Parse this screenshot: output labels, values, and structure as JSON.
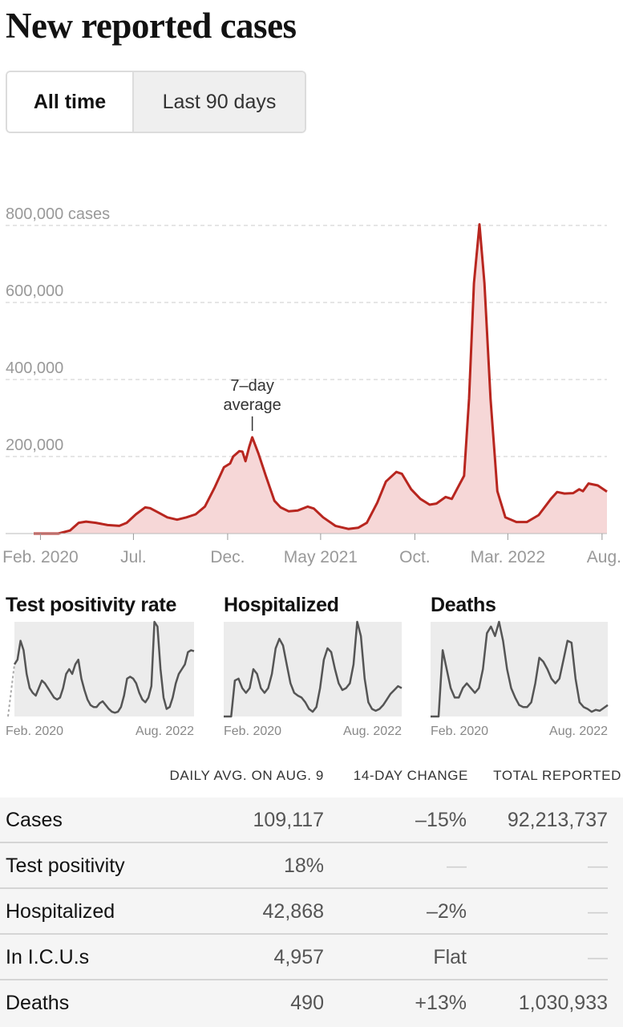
{
  "title": "New reported cases",
  "toggle": {
    "options": [
      "All time",
      "Last 90 days"
    ],
    "selected": "All time"
  },
  "chart_data": {
    "type": "area",
    "title": "New reported cases",
    "y_unit_label": "800,000 cases",
    "ylim": [
      0,
      800000
    ],
    "y_ticks": [
      {
        "value": 200000,
        "label": "200,000"
      },
      {
        "value": 400000,
        "label": "400,000"
      },
      {
        "value": 600000,
        "label": "600,000"
      },
      {
        "value": 800000,
        "label": "800,000 cases"
      }
    ],
    "x_ticks": [
      {
        "date": "2020-02-01",
        "label": "Feb. 2020"
      },
      {
        "date": "2020-07-01",
        "label": "Jul."
      },
      {
        "date": "2020-12-01",
        "label": "Dec."
      },
      {
        "date": "2021-05-01",
        "label": "May 2021"
      },
      {
        "date": "2021-10-01",
        "label": "Oct."
      },
      {
        "date": "2022-03-01",
        "label": "Mar. 2022"
      },
      {
        "date": "2022-08-01",
        "label": "Aug."
      }
    ],
    "xlim": [
      "2020-01-21",
      "2022-08-09"
    ],
    "grid": true,
    "annotation": {
      "text": [
        "7–day",
        "average"
      ],
      "date": "2021-01-10",
      "value": 250000
    },
    "colors": {
      "line": "#b8261f",
      "fill": "#f6d7d7",
      "grid": "#cccccc",
      "axis": "#999999"
    },
    "series": [
      {
        "name": "7–day average",
        "points": [
          [
            "2020-01-21",
            0
          ],
          [
            "2020-03-01",
            0
          ],
          [
            "2020-03-20",
            8000
          ],
          [
            "2020-04-03",
            28000
          ],
          [
            "2020-04-15",
            31000
          ],
          [
            "2020-05-01",
            28000
          ],
          [
            "2020-05-20",
            22000
          ],
          [
            "2020-06-08",
            20000
          ],
          [
            "2020-06-20",
            28000
          ],
          [
            "2020-07-05",
            50000
          ],
          [
            "2020-07-20",
            68000
          ],
          [
            "2020-07-28",
            66000
          ],
          [
            "2020-08-10",
            55000
          ],
          [
            "2020-08-25",
            42000
          ],
          [
            "2020-09-10",
            36000
          ],
          [
            "2020-09-25",
            42000
          ],
          [
            "2020-10-10",
            50000
          ],
          [
            "2020-10-25",
            70000
          ],
          [
            "2020-11-10",
            120000
          ],
          [
            "2020-11-25",
            172000
          ],
          [
            "2020-12-05",
            182000
          ],
          [
            "2020-12-10",
            200000
          ],
          [
            "2020-12-20",
            214000
          ],
          [
            "2020-12-25",
            213000
          ],
          [
            "2020-12-30",
            188000
          ],
          [
            "2021-01-05",
            225000
          ],
          [
            "2021-01-10",
            250000
          ],
          [
            "2021-01-20",
            208000
          ],
          [
            "2021-02-01",
            150000
          ],
          [
            "2021-02-15",
            85000
          ],
          [
            "2021-02-25",
            68000
          ],
          [
            "2021-03-10",
            58000
          ],
          [
            "2021-03-25",
            60000
          ],
          [
            "2021-04-10",
            70000
          ],
          [
            "2021-04-20",
            65000
          ],
          [
            "2021-05-05",
            42000
          ],
          [
            "2021-05-25",
            20000
          ],
          [
            "2021-06-15",
            12000
          ],
          [
            "2021-07-01",
            15000
          ],
          [
            "2021-07-15",
            28000
          ],
          [
            "2021-08-01",
            80000
          ],
          [
            "2021-08-15",
            135000
          ],
          [
            "2021-09-01",
            160000
          ],
          [
            "2021-09-10",
            155000
          ],
          [
            "2021-09-25",
            115000
          ],
          [
            "2021-10-10",
            90000
          ],
          [
            "2021-10-25",
            75000
          ],
          [
            "2021-11-05",
            78000
          ],
          [
            "2021-11-20",
            95000
          ],
          [
            "2021-11-30",
            90000
          ],
          [
            "2021-12-10",
            120000
          ],
          [
            "2021-12-20",
            150000
          ],
          [
            "2021-12-28",
            350000
          ],
          [
            "2022-01-05",
            650000
          ],
          [
            "2022-01-14",
            803000
          ],
          [
            "2022-01-22",
            650000
          ],
          [
            "2022-02-01",
            350000
          ],
          [
            "2022-02-12",
            110000
          ],
          [
            "2022-02-25",
            42000
          ],
          [
            "2022-03-15",
            30000
          ],
          [
            "2022-04-01",
            30000
          ],
          [
            "2022-04-20",
            48000
          ],
          [
            "2022-05-10",
            90000
          ],
          [
            "2022-05-20",
            108000
          ],
          [
            "2022-06-01",
            104000
          ],
          [
            "2022-06-15",
            105000
          ],
          [
            "2022-06-25",
            115000
          ],
          [
            "2022-07-01",
            110000
          ],
          [
            "2022-07-10",
            130000
          ],
          [
            "2022-07-25",
            125000
          ],
          [
            "2022-08-09",
            109000
          ]
        ]
      }
    ]
  },
  "mini_charts": [
    {
      "title": "Test positivity rate",
      "x_start": "Feb. 2020",
      "x_end": "Aug. 2022",
      "values": [
        0.55,
        0.6,
        0.8,
        0.7,
        0.45,
        0.3,
        0.25,
        0.22,
        0.3,
        0.38,
        0.35,
        0.3,
        0.25,
        0.2,
        0.18,
        0.2,
        0.3,
        0.45,
        0.5,
        0.45,
        0.55,
        0.6,
        0.4,
        0.28,
        0.18,
        0.12,
        0.1,
        0.1,
        0.14,
        0.16,
        0.12,
        0.08,
        0.05,
        0.04,
        0.05,
        0.1,
        0.22,
        0.4,
        0.42,
        0.4,
        0.35,
        0.25,
        0.18,
        0.15,
        0.2,
        0.32,
        1.0,
        0.95,
        0.5,
        0.2,
        0.08,
        0.1,
        0.2,
        0.35,
        0.45,
        0.5,
        0.55,
        0.68,
        0.7,
        0.69
      ]
    },
    {
      "title": "Hospitalized",
      "x_start": "Feb. 2020",
      "x_end": "Aug. 2022",
      "values": [
        0.0,
        0.0,
        0.0,
        0.38,
        0.4,
        0.3,
        0.25,
        0.3,
        0.5,
        0.45,
        0.3,
        0.25,
        0.3,
        0.45,
        0.72,
        0.82,
        0.75,
        0.55,
        0.35,
        0.25,
        0.22,
        0.2,
        0.15,
        0.08,
        0.05,
        0.1,
        0.3,
        0.6,
        0.72,
        0.68,
        0.5,
        0.35,
        0.28,
        0.3,
        0.35,
        0.55,
        1.0,
        0.85,
        0.4,
        0.15,
        0.08,
        0.06,
        0.08,
        0.12,
        0.18,
        0.24,
        0.28,
        0.32,
        0.3
      ]
    },
    {
      "title": "Deaths",
      "x_start": "Feb. 2020",
      "x_end": "Aug. 2022",
      "values": [
        0.0,
        0.0,
        0.0,
        0.7,
        0.5,
        0.3,
        0.2,
        0.2,
        0.3,
        0.35,
        0.3,
        0.25,
        0.3,
        0.5,
        0.88,
        0.95,
        0.85,
        1.0,
        0.8,
        0.5,
        0.3,
        0.2,
        0.12,
        0.1,
        0.1,
        0.15,
        0.35,
        0.62,
        0.58,
        0.5,
        0.4,
        0.35,
        0.4,
        0.6,
        0.8,
        0.78,
        0.4,
        0.15,
        0.1,
        0.08,
        0.05,
        0.07,
        0.06,
        0.09,
        0.12
      ]
    }
  ],
  "table": {
    "headers": [
      "DAILY AVG. ON AUG. 9",
      "14-DAY CHANGE",
      "TOTAL REPORTED"
    ],
    "rows": [
      {
        "metric": "Cases",
        "avg": "109,117",
        "change": "–15%",
        "total": "92,213,737"
      },
      {
        "metric": "Test positivity",
        "avg": "18%",
        "change": "—",
        "total": "—"
      },
      {
        "metric": "Hospitalized",
        "avg": "42,868",
        "change": "–2%",
        "total": "—"
      },
      {
        "metric": "In I.C.U.s",
        "avg": "4,957",
        "change": "Flat",
        "total": "—"
      },
      {
        "metric": "Deaths",
        "avg": "490",
        "change": "+13%",
        "total": "1,030,933"
      }
    ]
  }
}
